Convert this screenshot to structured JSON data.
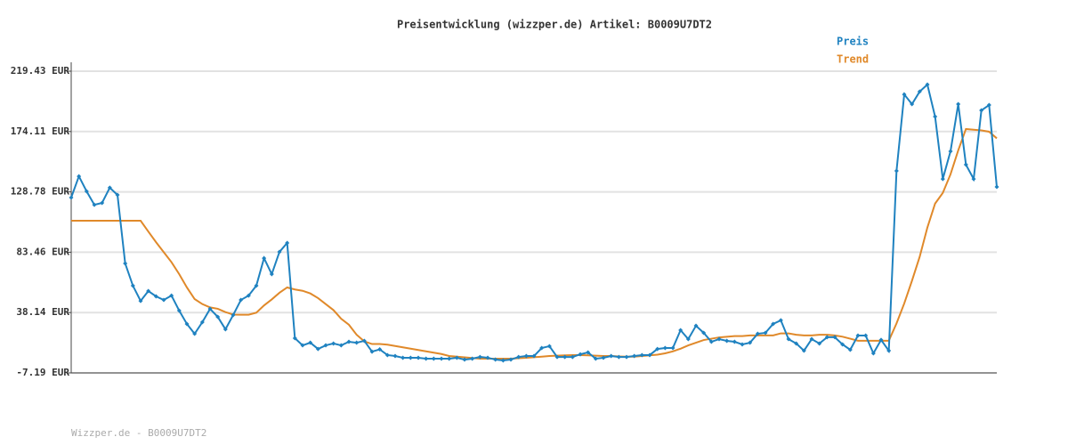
{
  "chart_data": {
    "type": "line",
    "title": "Preisentwicklung (wizzper.de) Artikel: B0009U7DT2",
    "footer": "Wizzper.de - B0009U7DT2",
    "legend": "top-right",
    "grid": true,
    "markers": true,
    "ylim": [
      -7.19,
      219.43
    ],
    "yticks": [
      {
        "value": -7.19,
        "label": "-7.19 EUR"
      },
      {
        "value": 38.14,
        "label": "38.14 EUR"
      },
      {
        "value": 83.46,
        "label": "83.46 EUR"
      },
      {
        "value": 128.78,
        "label": "128.78 EUR"
      },
      {
        "value": 174.11,
        "label": "174.11 EUR"
      },
      {
        "value": 219.43,
        "label": "219.43 EUR"
      }
    ],
    "series": [
      {
        "name": "Preis",
        "color": "#1f82c0",
        "values": [
          124.5,
          140.5,
          129.2,
          119.1,
          120.5,
          131.9,
          126.5,
          75.0,
          58.3,
          46.9,
          54.3,
          50.3,
          47.6,
          50.9,
          39.6,
          29.6,
          22.2,
          30.9,
          40.9,
          34.9,
          25.6,
          36.3,
          47.6,
          50.9,
          58.3,
          79.0,
          67.0,
          83.7,
          90.4,
          18.9,
          13.5,
          15.5,
          10.8,
          13.5,
          14.9,
          13.5,
          16.2,
          15.5,
          16.9,
          8.8,
          10.5,
          6.2,
          5.5,
          4.2,
          4.2,
          4.2,
          3.5,
          3.5,
          3.5,
          3.5,
          4.2,
          2.8,
          3.5,
          4.8,
          4.2,
          2.8,
          2.2,
          2.8,
          4.8,
          5.5,
          5.5,
          11.5,
          12.9,
          4.8,
          4.8,
          4.8,
          6.8,
          8.2,
          3.5,
          4.2,
          5.5,
          4.8,
          4.8,
          5.5,
          6.2,
          6.2,
          10.8,
          11.5,
          11.5,
          24.9,
          18.2,
          28.2,
          22.9,
          16.2,
          18.2,
          16.9,
          16.2,
          14.2,
          15.5,
          22.2,
          22.9,
          29.6,
          32.3,
          18.2,
          14.9,
          9.5,
          18.2,
          14.9,
          19.6,
          19.6,
          14.2,
          10.2,
          20.9,
          20.9,
          7.5,
          17.6,
          9.5,
          144.6,
          202.0,
          194.7,
          204.1,
          209.4,
          185.3,
          138.5,
          159.3,
          194.7,
          149.2,
          138.5,
          190.0,
          194.0,
          132.5
        ]
      },
      {
        "name": "Trend",
        "color": "#e0892a",
        "values": [
          107.1,
          107.1,
          107.1,
          107.1,
          107.1,
          107.1,
          107.1,
          107.1,
          107.1,
          107.1,
          99.0,
          91.0,
          83.5,
          76.0,
          67.0,
          57.0,
          48.3,
          44.5,
          42.0,
          41.0,
          38.5,
          36.6,
          36.5,
          36.5,
          38.0,
          43.5,
          48.0,
          53.0,
          57.0,
          55.5,
          54.5,
          52.5,
          49.0,
          44.5,
          40.0,
          33.5,
          29.0,
          21.5,
          16.5,
          14.5,
          14.5,
          14.0,
          13.0,
          12.0,
          11.0,
          10.0,
          9.0,
          8.0,
          7.0,
          5.5,
          5.0,
          4.5,
          4.0,
          3.5,
          3.5,
          3.5,
          3.5,
          3.5,
          3.8,
          4.2,
          4.6,
          5.0,
          5.5,
          5.8,
          6.0,
          6.2,
          6.2,
          6.0,
          5.8,
          5.5,
          5.5,
          5.2,
          5.0,
          5.0,
          5.5,
          6.0,
          6.5,
          7.5,
          9.0,
          11.0,
          13.5,
          15.5,
          17.5,
          18.5,
          19.5,
          20.0,
          20.5,
          20.5,
          21.0,
          21.0,
          21.0,
          21.0,
          22.5,
          22.5,
          21.5,
          21.0,
          21.0,
          21.5,
          21.5,
          21.0,
          20.0,
          18.5,
          17.0,
          17.0,
          17.0,
          17.0,
          17.0,
          30.0,
          45.0,
          62.0,
          80.0,
          102.0,
          120.0,
          128.0,
          142.0,
          160.0,
          176.0,
          175.5,
          175.0,
          174.0,
          169.0
        ]
      }
    ]
  }
}
